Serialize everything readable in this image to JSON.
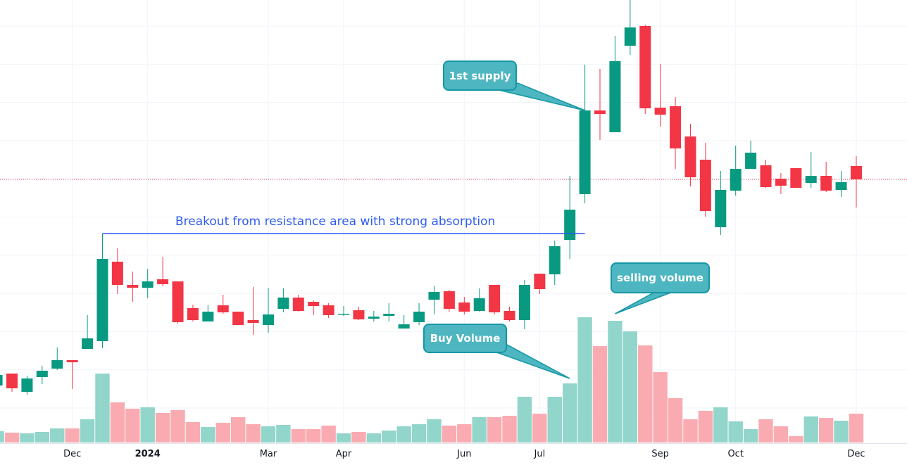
{
  "chart_data": {
    "type": "candlestick",
    "title": "",
    "xlabel": "",
    "ylabel": "",
    "price_axis_visible": false,
    "ylim": [
      4,
      70
    ],
    "grid": true,
    "colors": {
      "up": "#089981",
      "down": "#f23645",
      "volume_up": "#92d5ca",
      "volume_down": "#f9abb1",
      "last_price_line": "#f23645",
      "annotation_line": "#2e5cf0",
      "callout_fill": "#4db6c1",
      "callout_border": "#1597a6"
    },
    "candles": [
      {
        "o": 15.2,
        "h": 17.0,
        "l": 14.8,
        "c": 16.7,
        "v": 16
      },
      {
        "o": 16.9,
        "h": 16.9,
        "l": 14.3,
        "c": 14.8,
        "v": 14
      },
      {
        "o": 14.3,
        "h": 16.6,
        "l": 13.9,
        "c": 16.2,
        "v": 13
      },
      {
        "o": 16.4,
        "h": 18.0,
        "l": 15.4,
        "c": 17.3,
        "v": 15
      },
      {
        "o": 17.6,
        "h": 20.6,
        "l": 17.4,
        "c": 18.8,
        "v": 20
      },
      {
        "o": 18.8,
        "h": 18.8,
        "l": 14.7,
        "c": 18.5,
        "v": 20
      },
      {
        "o": 20.4,
        "h": 25.2,
        "l": 20.4,
        "c": 21.9,
        "v": 33
      },
      {
        "o": 21.5,
        "h": 36.8,
        "l": 20.5,
        "c": 33.2,
        "v": 98
      },
      {
        "o": 32.8,
        "h": 34.7,
        "l": 28.2,
        "c": 29.5,
        "v": 57
      },
      {
        "o": 29.5,
        "h": 31.4,
        "l": 27.1,
        "c": 29.1,
        "v": 48
      },
      {
        "o": 29.1,
        "h": 31.8,
        "l": 27.6,
        "c": 30.0,
        "v": 50
      },
      {
        "o": 30.3,
        "h": 33.5,
        "l": 29.3,
        "c": 29.6,
        "v": 42
      },
      {
        "o": 30.0,
        "h": 30.0,
        "l": 24.0,
        "c": 24.2,
        "v": 46
      },
      {
        "o": 26.2,
        "h": 26.7,
        "l": 24.3,
        "c": 24.5,
        "v": 29
      },
      {
        "o": 24.3,
        "h": 26.6,
        "l": 24.3,
        "c": 25.7,
        "v": 22
      },
      {
        "o": 26.6,
        "h": 28.1,
        "l": 25.4,
        "c": 25.6,
        "v": 28
      },
      {
        "o": 25.7,
        "h": 25.7,
        "l": 23.8,
        "c": 23.8,
        "v": 36
      },
      {
        "o": 24.5,
        "h": 29.2,
        "l": 22.4,
        "c": 24.1,
        "v": 26
      },
      {
        "o": 23.8,
        "h": 29.1,
        "l": 22.7,
        "c": 25.3,
        "v": 23
      },
      {
        "o": 26.1,
        "h": 29.0,
        "l": 25.6,
        "c": 27.7,
        "v": 25
      },
      {
        "o": 27.7,
        "h": 28.1,
        "l": 25.7,
        "c": 25.8,
        "v": 19
      },
      {
        "o": 27.1,
        "h": 27.3,
        "l": 25.2,
        "c": 26.5,
        "v": 19
      },
      {
        "o": 26.6,
        "h": 26.9,
        "l": 24.8,
        "c": 25.2,
        "v": 24
      },
      {
        "o": 25.3,
        "h": 26.5,
        "l": 25.1,
        "c": 25.4,
        "v": 13
      },
      {
        "o": 25.9,
        "h": 26.4,
        "l": 24.5,
        "c": 24.6,
        "v": 15
      },
      {
        "o": 24.7,
        "h": 25.8,
        "l": 24.3,
        "c": 25.0,
        "v": 13
      },
      {
        "o": 25.1,
        "h": 26.9,
        "l": 24.3,
        "c": 25.4,
        "v": 17
      },
      {
        "o": 23.3,
        "h": 25.2,
        "l": 23.3,
        "c": 23.9,
        "v": 23
      },
      {
        "o": 24.2,
        "h": 26.9,
        "l": 23.8,
        "c": 25.7,
        "v": 26
      },
      {
        "o": 27.4,
        "h": 29.4,
        "l": 25.3,
        "c": 28.5,
        "v": 33
      },
      {
        "o": 28.6,
        "h": 28.8,
        "l": 25.7,
        "c": 26.1,
        "v": 24
      },
      {
        "o": 27.0,
        "h": 27.8,
        "l": 25.3,
        "c": 25.7,
        "v": 26
      },
      {
        "o": 25.8,
        "h": 29.0,
        "l": 25.7,
        "c": 27.6,
        "v": 36
      },
      {
        "o": 29.5,
        "h": 29.5,
        "l": 25.3,
        "c": 25.6,
        "v": 36
      },
      {
        "o": 25.8,
        "h": 26.4,
        "l": 24.3,
        "c": 24.5,
        "v": 38
      },
      {
        "o": 24.5,
        "h": 30.2,
        "l": 23.2,
        "c": 29.5,
        "v": 65
      },
      {
        "o": 31.1,
        "h": 31.1,
        "l": 28.2,
        "c": 28.9,
        "v": 41
      },
      {
        "o": 31.0,
        "h": 35.8,
        "l": 29.5,
        "c": 35.0,
        "v": 65
      },
      {
        "o": 35.9,
        "h": 45.0,
        "l": 33.2,
        "c": 40.2,
        "v": 84
      },
      {
        "o": 42.4,
        "h": 60.8,
        "l": 41.1,
        "c": 54.3,
        "v": 178
      },
      {
        "o": 54.3,
        "h": 60.2,
        "l": 50.1,
        "c": 53.8,
        "v": 137
      },
      {
        "o": 51.2,
        "h": 64.9,
        "l": 51.2,
        "c": 61.3,
        "v": 173
      },
      {
        "o": 63.5,
        "h": 70.0,
        "l": 62.2,
        "c": 66.1,
        "v": 158
      },
      {
        "o": 66.3,
        "h": 66.5,
        "l": 53.8,
        "c": 54.6,
        "v": 138
      },
      {
        "o": 54.7,
        "h": 60.9,
        "l": 52.0,
        "c": 53.7,
        "v": 100
      },
      {
        "o": 54.9,
        "h": 56.2,
        "l": 46.0,
        "c": 48.9,
        "v": 63
      },
      {
        "o": 50.6,
        "h": 52.4,
        "l": 43.5,
        "c": 44.8,
        "v": 33
      },
      {
        "o": 47.3,
        "h": 49.7,
        "l": 39.2,
        "c": 40.0,
        "v": 45
      },
      {
        "o": 37.7,
        "h": 45.7,
        "l": 36.6,
        "c": 43.0,
        "v": 50
      },
      {
        "o": 42.9,
        "h": 49.3,
        "l": 42.2,
        "c": 46.0,
        "v": 30
      },
      {
        "o": 46.0,
        "h": 50.0,
        "l": 46.0,
        "c": 48.3,
        "v": 19
      },
      {
        "o": 46.5,
        "h": 47.3,
        "l": 43.3,
        "c": 43.4,
        "v": 33
      },
      {
        "o": 44.6,
        "h": 45.4,
        "l": 42.4,
        "c": 43.6,
        "v": 23
      },
      {
        "o": 46.1,
        "h": 46.1,
        "l": 43.3,
        "c": 43.3,
        "v": 9
      },
      {
        "o": 44.0,
        "h": 48.4,
        "l": 43.3,
        "c": 45.0,
        "v": 37
      },
      {
        "o": 45.0,
        "h": 47.0,
        "l": 42.7,
        "c": 42.9,
        "v": 35
      },
      {
        "o": 43.0,
        "h": 45.7,
        "l": 42.0,
        "c": 44.1,
        "v": 31
      },
      {
        "o": 46.4,
        "h": 47.8,
        "l": 40.5,
        "c": 44.5,
        "v": 41
      }
    ],
    "last_price": 44.5,
    "x_ticks": [
      {
        "label": "Dec",
        "bar": 5,
        "bold": false
      },
      {
        "label": "2024",
        "bar": 10,
        "bold": true
      },
      {
        "label": "Mar",
        "bar": 18,
        "bold": false
      },
      {
        "label": "Apr",
        "bar": 23,
        "bold": false
      },
      {
        "label": "Jun",
        "bar": 31,
        "bold": false
      },
      {
        "label": "Jul",
        "bar": 36,
        "bold": false
      },
      {
        "label": "Sep",
        "bar": 44,
        "bold": false
      },
      {
        "label": "Oct",
        "bar": 49,
        "bold": false
      },
      {
        "label": "Dec",
        "bar": 57,
        "bold": false
      }
    ],
    "annotations": {
      "breakout": {
        "text": "Breakout from resistance area with strong absorption",
        "price": 36.8,
        "from_bar": 7,
        "to_bar": 39
      },
      "first_supply": {
        "text": "1st supply",
        "bar": 39,
        "price": 54.3
      },
      "buy_volume": {
        "text": "Buy Volume",
        "bar": 38
      },
      "selling_volume": {
        "text": "selling volume",
        "bar": 41
      }
    }
  }
}
